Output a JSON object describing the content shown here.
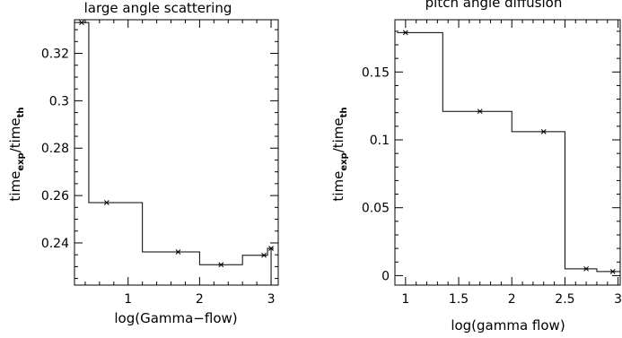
{
  "chart_data": [
    {
      "type": "line",
      "step": true,
      "title": "large angle scattering",
      "xlabel": "log(Gamma−flow)",
      "ylabel_main": "time",
      "ylabel_num_sub": "exp",
      "ylabel_div": "/time",
      "ylabel_den_sub": "th",
      "xlim": [
        0.25,
        3.1
      ],
      "ylim": [
        0.2222,
        0.3342
      ],
      "xticks": [
        1,
        2,
        3
      ],
      "xtick_labels": [
        "1",
        "2",
        "3"
      ],
      "yticks": [
        0.24,
        0.26,
        0.28,
        0.3,
        0.32
      ],
      "ytick_labels": [
        "0.24",
        "0.26",
        "0.28",
        "0.3",
        "0.32"
      ],
      "xminor_step": 0.2,
      "yminor_step": 0.005,
      "edges": [
        0.25,
        0.45,
        1.2,
        2.0,
        2.6,
        2.95,
        3.0
      ],
      "levels": [
        0.333,
        0.257,
        0.2362,
        0.2308,
        0.2348,
        0.2377
      ],
      "points": [
        {
          "x": 0.35,
          "y": 0.333
        },
        {
          "x": 0.7,
          "y": 0.257
        },
        {
          "x": 1.7,
          "y": 0.2362
        },
        {
          "x": 2.3,
          "y": 0.2308
        },
        {
          "x": 2.9,
          "y": 0.2348
        },
        {
          "x": 3.0,
          "y": 0.2377
        }
      ]
    },
    {
      "type": "line",
      "step": true,
      "title": "pitch angle diffusion",
      "xlabel": "log(gamma flow)",
      "ylabel_main": "time",
      "ylabel_num_sub": "exp",
      "ylabel_div": "/time",
      "ylabel_den_sub": "th",
      "xlim": [
        0.9,
        3.02
      ],
      "ylim": [
        -0.007,
        0.1885
      ],
      "xticks": [
        1,
        1.5,
        2,
        2.5,
        3
      ],
      "xtick_labels": [
        "1",
        "1.5",
        "2",
        "2.5",
        "3"
      ],
      "yticks": [
        0,
        0.05,
        0.1,
        0.15
      ],
      "ytick_labels": [
        "0",
        "0.05",
        "0.1",
        "0.15"
      ],
      "xminor_step": 0.1,
      "yminor_step": 0.01,
      "edges": [
        0.92,
        1.35,
        2.0,
        2.5,
        2.8,
        3.02
      ],
      "levels": [
        0.179,
        0.121,
        0.106,
        0.005,
        0.003
      ],
      "points": [
        {
          "x": 1.0,
          "y": 0.179
        },
        {
          "x": 1.7,
          "y": 0.121
        },
        {
          "x": 2.3,
          "y": 0.106
        },
        {
          "x": 2.7,
          "y": 0.005
        },
        {
          "x": 2.95,
          "y": 0.003
        }
      ]
    }
  ]
}
